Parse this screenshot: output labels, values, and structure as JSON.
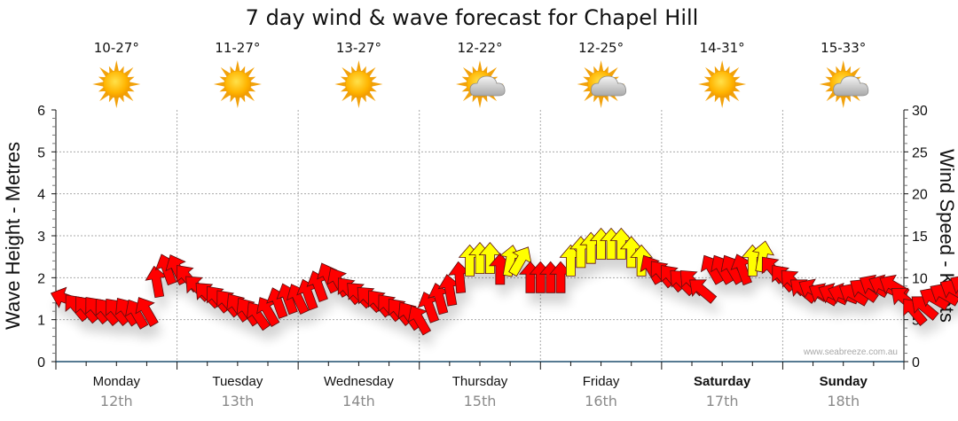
{
  "chart_data": {
    "type": "scatter",
    "title": "7 day wind & wave forecast for Chapel Hill",
    "ylabel_left": "Wave Height - Metres",
    "ylabel_right": "Wind Speed - Knots",
    "ylim_left": [
      0,
      6
    ],
    "ylim_right": [
      0,
      30
    ],
    "yticks_left": [
      "0",
      "1",
      "2",
      "3",
      "4",
      "5",
      "6"
    ],
    "yticks_right": [
      "0",
      "5",
      "10",
      "15",
      "20",
      "25",
      "30"
    ],
    "grid": true,
    "watermark": "www.seabreeze.com.au",
    "days": [
      {
        "name": "Monday",
        "date": "12th",
        "bold": false,
        "temp": "10-27°",
        "icon": "sun-icon"
      },
      {
        "name": "Tuesday",
        "date": "13th",
        "bold": false,
        "temp": "11-27°",
        "icon": "sun-icon"
      },
      {
        "name": "Wednesday",
        "date": "14th",
        "bold": false,
        "temp": "13-27°",
        "icon": "sun-icon"
      },
      {
        "name": "Thursday",
        "date": "15th",
        "bold": false,
        "temp": "12-22°",
        "icon": "partly-cloudy-icon"
      },
      {
        "name": "Friday",
        "date": "16th",
        "bold": false,
        "temp": "12-25°",
        "icon": "partly-cloudy-icon"
      },
      {
        "name": "Saturday",
        "date": "17th",
        "bold": true,
        "temp": "14-31°",
        "icon": "sun-icon"
      },
      {
        "name": "Sunday",
        "date": "18th",
        "bold": true,
        "temp": "15-33°",
        "icon": "partly-cloudy-icon"
      }
    ],
    "colors": {
      "low": "#ff0000",
      "high": "#ffff00"
    },
    "wind_series_note": "hour = hours from Monday 00:00; speed in knots; dir = arrow heading in degrees (0 = up, clockwise)",
    "wind": [
      {
        "hour": 2,
        "speed": 7.5,
        "dir": 290
      },
      {
        "hour": 4,
        "speed": 6.5,
        "dir": 320
      },
      {
        "hour": 6,
        "speed": 6.3,
        "dir": 320
      },
      {
        "hour": 8,
        "speed": 6.2,
        "dir": 320
      },
      {
        "hour": 10,
        "speed": 6.0,
        "dir": 320
      },
      {
        "hour": 12,
        "speed": 6.0,
        "dir": 320
      },
      {
        "hour": 14,
        "speed": 6.0,
        "dir": 325
      },
      {
        "hour": 16,
        "speed": 5.7,
        "dir": 330
      },
      {
        "hour": 18,
        "speed": 6.0,
        "dir": 330
      },
      {
        "hour": 20,
        "speed": 9.5,
        "dir": 350
      },
      {
        "hour": 22,
        "speed": 11.0,
        "dir": 340
      },
      {
        "hour": 24,
        "speed": 11.0,
        "dir": 335
      },
      {
        "hour": 26,
        "speed": 10.0,
        "dir": 320
      },
      {
        "hour": 28,
        "speed": 8.8,
        "dir": 315
      },
      {
        "hour": 30,
        "speed": 8.0,
        "dir": 315
      },
      {
        "hour": 32,
        "speed": 7.5,
        "dir": 320
      },
      {
        "hour": 34,
        "speed": 7.0,
        "dir": 320
      },
      {
        "hour": 36,
        "speed": 6.5,
        "dir": 325
      },
      {
        "hour": 38,
        "speed": 6.0,
        "dir": 325
      },
      {
        "hour": 40,
        "speed": 5.5,
        "dir": 325
      },
      {
        "hour": 42,
        "speed": 6.0,
        "dir": 330
      },
      {
        "hour": 44,
        "speed": 7.0,
        "dir": 340
      },
      {
        "hour": 46,
        "speed": 7.5,
        "dir": 340
      },
      {
        "hour": 48,
        "speed": 7.5,
        "dir": 335
      },
      {
        "hour": 50,
        "speed": 8.0,
        "dir": 340
      },
      {
        "hour": 52,
        "speed": 9.0,
        "dir": 340
      },
      {
        "hour": 54,
        "speed": 10.0,
        "dir": 335
      },
      {
        "hour": 56,
        "speed": 9.5,
        "dir": 330
      },
      {
        "hour": 58,
        "speed": 8.5,
        "dir": 320
      },
      {
        "hour": 60,
        "speed": 8.0,
        "dir": 315
      },
      {
        "hour": 62,
        "speed": 7.5,
        "dir": 315
      },
      {
        "hour": 64,
        "speed": 7.0,
        "dir": 320
      },
      {
        "hour": 66,
        "speed": 6.5,
        "dir": 320
      },
      {
        "hour": 68,
        "speed": 6.0,
        "dir": 320
      },
      {
        "hour": 70,
        "speed": 5.5,
        "dir": 325
      },
      {
        "hour": 72,
        "speed": 5.0,
        "dir": 330
      },
      {
        "hour": 74,
        "speed": 6.5,
        "dir": 340
      },
      {
        "hour": 76,
        "speed": 7.5,
        "dir": 345
      },
      {
        "hour": 78,
        "speed": 8.5,
        "dir": 350
      },
      {
        "hour": 80,
        "speed": 10.0,
        "dir": 355
      },
      {
        "hour": 82,
        "speed": 12.0,
        "dir": 0
      },
      {
        "hour": 84,
        "speed": 12.3,
        "dir": 0
      },
      {
        "hour": 86,
        "speed": 12.3,
        "dir": 0
      },
      {
        "hour": 88,
        "speed": 11.0,
        "dir": 0
      },
      {
        "hour": 90,
        "speed": 12.0,
        "dir": 10
      },
      {
        "hour": 92,
        "speed": 12.0,
        "dir": 30
      },
      {
        "hour": 94,
        "speed": 10.0,
        "dir": 0
      },
      {
        "hour": 96,
        "speed": 10.0,
        "dir": 0
      },
      {
        "hour": 98,
        "speed": 10.0,
        "dir": 0
      },
      {
        "hour": 100,
        "speed": 10.0,
        "dir": 0
      },
      {
        "hour": 102,
        "speed": 12.0,
        "dir": 0
      },
      {
        "hour": 104,
        "speed": 13.0,
        "dir": 0
      },
      {
        "hour": 106,
        "speed": 13.5,
        "dir": 0
      },
      {
        "hour": 108,
        "speed": 14.0,
        "dir": 0
      },
      {
        "hour": 110,
        "speed": 14.0,
        "dir": 0
      },
      {
        "hour": 112,
        "speed": 14.0,
        "dir": 0
      },
      {
        "hour": 114,
        "speed": 13.0,
        "dir": 0
      },
      {
        "hour": 116,
        "speed": 12.0,
        "dir": 0
      },
      {
        "hour": 118,
        "speed": 11.0,
        "dir": 330
      },
      {
        "hour": 120,
        "speed": 10.5,
        "dir": 320
      },
      {
        "hour": 122,
        "speed": 10.0,
        "dir": 320
      },
      {
        "hour": 124,
        "speed": 9.5,
        "dir": 315
      },
      {
        "hour": 126,
        "speed": 9.5,
        "dir": 315
      },
      {
        "hour": 128,
        "speed": 8.5,
        "dir": 310
      },
      {
        "hour": 130,
        "speed": 11.0,
        "dir": 330
      },
      {
        "hour": 132,
        "speed": 11.0,
        "dir": 330
      },
      {
        "hour": 134,
        "speed": 11.0,
        "dir": 330
      },
      {
        "hour": 136,
        "speed": 11.0,
        "dir": 340
      },
      {
        "hour": 138,
        "speed": 12.0,
        "dir": 0
      },
      {
        "hour": 140,
        "speed": 12.5,
        "dir": 10
      },
      {
        "hour": 142,
        "speed": 11.0,
        "dir": 320
      },
      {
        "hour": 144,
        "speed": 10.0,
        "dir": 320
      },
      {
        "hour": 146,
        "speed": 9.5,
        "dir": 315
      },
      {
        "hour": 148,
        "speed": 8.5,
        "dir": 310
      },
      {
        "hour": 150,
        "speed": 8.5,
        "dir": 300
      },
      {
        "hour": 152,
        "speed": 8.0,
        "dir": 300
      },
      {
        "hour": 154,
        "speed": 8.0,
        "dir": 295
      },
      {
        "hour": 156,
        "speed": 8.0,
        "dir": 290
      },
      {
        "hour": 158,
        "speed": 8.0,
        "dir": 300
      },
      {
        "hour": 160,
        "speed": 8.5,
        "dir": 305
      },
      {
        "hour": 162,
        "speed": 9.0,
        "dir": 300
      },
      {
        "hour": 164,
        "speed": 9.0,
        "dir": 295
      },
      {
        "hour": 166,
        "speed": 9.0,
        "dir": 300
      },
      {
        "hour": 168,
        "speed": 7.5,
        "dir": 310
      },
      {
        "hour": 170,
        "speed": 6.0,
        "dir": 320
      },
      {
        "hour": 172,
        "speed": 6.5,
        "dir": 310
      },
      {
        "hour": 174,
        "speed": 7.5,
        "dir": 300
      },
      {
        "hour": 176,
        "speed": 8.0,
        "dir": 300
      },
      {
        "hour": 178,
        "speed": 8.5,
        "dir": 300
      },
      {
        "hour": 180,
        "speed": 9.0,
        "dir": 300
      },
      {
        "hour": 182,
        "speed": 9.5,
        "dir": 300
      },
      {
        "hour": 184,
        "speed": 9.5,
        "dir": 305
      },
      {
        "hour": 186,
        "speed": 9.0,
        "dir": 310
      },
      {
        "hour": 188,
        "speed": 8.5,
        "dir": 315
      },
      {
        "hour": 190,
        "speed": 8.5,
        "dir": 315
      },
      {
        "hour": 192,
        "speed": 8.0,
        "dir": 315
      },
      {
        "hour": 194,
        "speed": 7.5,
        "dir": 315
      },
      {
        "hour": 196,
        "speed": 7.0,
        "dir": 315
      },
      {
        "hour": 198,
        "speed": 6.5,
        "dir": 310
      }
    ],
    "high_color_threshold_knots": 12
  }
}
